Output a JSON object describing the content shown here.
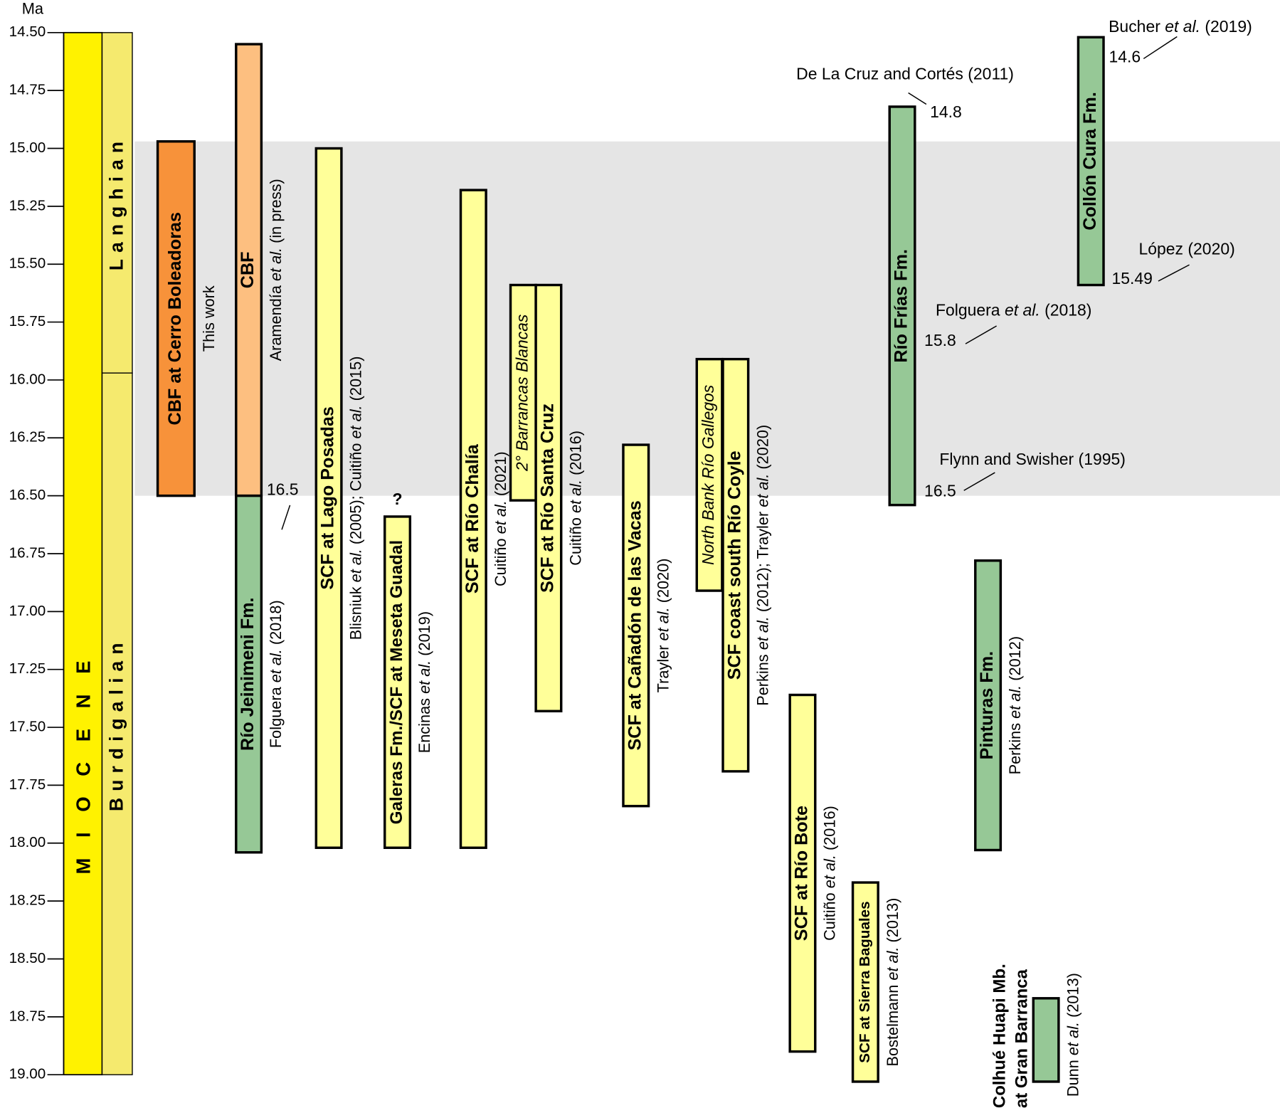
{
  "chart_data": {
    "type": "range",
    "y_label": "Ma",
    "ylim": [
      14.5,
      19.0
    ],
    "yticks": [
      {
        "value": 14.5,
        "label": "14.50"
      },
      14.75,
      {
        "value": 15.0,
        "label": "15.00"
      },
      15.25,
      {
        "value": 15.5,
        "label": "15.50"
      },
      15.75,
      {
        "value": 16.0,
        "label": "16.00"
      },
      16.25,
      {
        "value": 16.5,
        "label": "16.50"
      },
      16.75,
      {
        "value": 17.0,
        "label": "17.00"
      },
      17.25,
      {
        "value": 17.5,
        "label": "17.50"
      },
      17.75,
      {
        "value": 18.0,
        "label": "18.00"
      },
      18.25,
      {
        "value": 18.5,
        "label": "18.50"
      },
      18.75,
      {
        "value": 19.0,
        "label": "19.00"
      }
    ],
    "highlight_range": [
      14.97,
      16.5
    ],
    "epoch": {
      "name": "MIOCENE",
      "start": 14.5,
      "end": 19.0,
      "color": "#fff200"
    },
    "stages": [
      {
        "name": "Langhian",
        "start": 14.5,
        "end": 15.97,
        "color": "#f5ea6e"
      },
      {
        "name": "Burdigalian",
        "start": 15.97,
        "end": 19.0,
        "color": "#f5ea6e"
      }
    ],
    "bars": [
      {
        "label": "CBF at Cerro Boleadoras",
        "reference": "This work",
        "start": 14.97,
        "end": 16.5,
        "color": "#f7923a"
      },
      {
        "label": "CBF",
        "reference": "Aramendía et al. (in press)",
        "start": 14.55,
        "end": 16.5,
        "color": "#fdbf80"
      },
      {
        "label": "Río Jeinimeni Fm.",
        "reference": "Folguera et al. (2018)",
        "start": 16.5,
        "end": 18.04,
        "color": "#96c896"
      },
      {
        "label": "SCF at Lago Posadas",
        "reference": "Blisniuk et al. (2005); Cuitiño et al. (2015)",
        "start": 15.0,
        "end": 18.02,
        "color": "#ffff99"
      },
      {
        "label": "Galeras Fm./SCF at Meseta Guadal",
        "reference": "Encinas et al. (2019)",
        "flag": "?",
        "start": 16.59,
        "end": 18.02,
        "color": "#ffff99"
      },
      {
        "label": "SCF at Río Chalía",
        "reference": "Cuitiño et al. (2021)",
        "start": 15.18,
        "end": 18.02,
        "color": "#ffff99"
      },
      {
        "label": "2° Barrancas Blancas",
        "style": "italic",
        "start": 15.59,
        "end": 16.52,
        "color": "#ffff99"
      },
      {
        "label": "SCF at Río Santa Cruz",
        "reference": "Cuitiño et al. (2016)",
        "start": 15.59,
        "end": 17.43,
        "color": "#ffff99"
      },
      {
        "label": "SCF at Cañadón de las Vacas",
        "reference": "Trayler et al. (2020)",
        "start": 16.28,
        "end": 17.84,
        "color": "#ffff99"
      },
      {
        "label": "North Bank Río Gallegos",
        "style": "italic",
        "start": 15.91,
        "end": 16.91,
        "color": "#ffff99"
      },
      {
        "label": "SCF coast south Río Coyle",
        "reference": "Perkins et al. (2012); Trayler et al. (2020)",
        "start": 15.91,
        "end": 17.69,
        "color": "#ffff99"
      },
      {
        "label": "SCF at Río Bote",
        "reference": "Cuitiño et al. (2016)",
        "start": 17.36,
        "end": 18.9,
        "color": "#ffff99"
      },
      {
        "label": "SCF at Sierra Baguales",
        "reference": "Bostelmann et al. (2013)",
        "start": 18.17,
        "end": 19.03,
        "color": "#ffff99"
      },
      {
        "label": "Río Frías Fm.",
        "start": 14.82,
        "end": 16.54,
        "color": "#96c896"
      },
      {
        "label": "Collón Cura Fm.",
        "start": 14.52,
        "end": 15.59,
        "color": "#96c896"
      },
      {
        "label": "Pinturas Fm.",
        "reference": "Perkins et al. (2012)",
        "start": 16.78,
        "end": 18.03,
        "color": "#96c896"
      },
      {
        "label": [
          "Colhué Huapi Mb.",
          "at Gran Barranca"
        ],
        "reference": "Dunn et al. (2013)",
        "start": 18.67,
        "end": 19.03,
        "color": "#96c896"
      }
    ],
    "annotations": [
      {
        "value": 16.5
      },
      {
        "text": "De La Cruz and Cortés (2011)",
        "value": 14.8
      },
      {
        "text": "Bucher et al. (2019)",
        "value": 14.6
      },
      {
        "text": "López (2020)",
        "value": 15.49
      },
      {
        "text": "Folguera et al. (2018)",
        "value": 15.8
      },
      {
        "text": "Flynn and Swisher (1995)",
        "value": 16.5
      }
    ]
  }
}
